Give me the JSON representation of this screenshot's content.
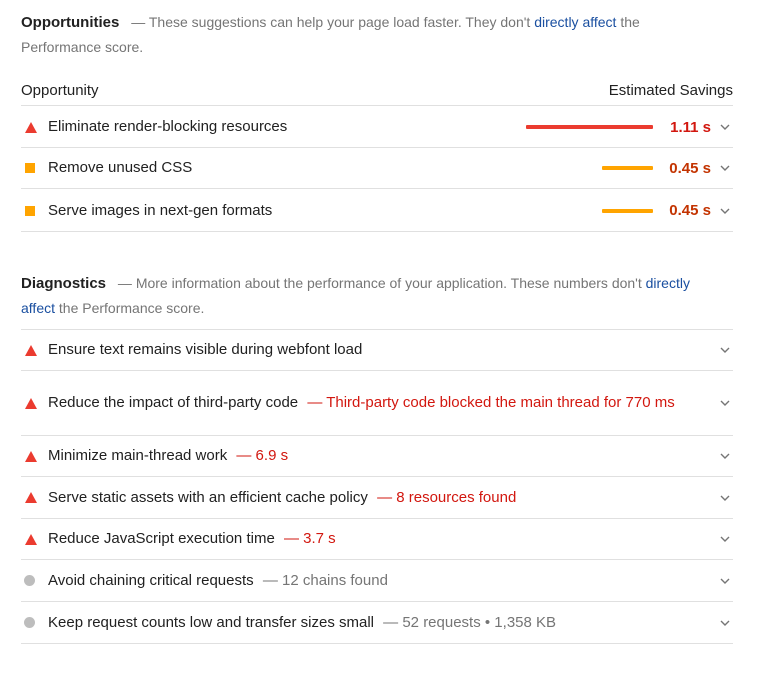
{
  "opportunities": {
    "title": "Opportunities",
    "sep": "—",
    "desc_before": "These suggestions can help your page load faster. They don't ",
    "desc_link": "directly affect",
    "desc_after": " the Performance score.",
    "col_left": "Opportunity",
    "col_right": "Estimated Savings",
    "items": [
      {
        "label": "Eliminate render-blocking resources",
        "value": "1.11 s",
        "seconds": 1.11,
        "status": "fail"
      },
      {
        "label": "Remove unused CSS",
        "value": "0.45 s",
        "seconds": 0.45,
        "status": "average"
      },
      {
        "label": "Serve images in next-gen formats",
        "value": "0.45 s",
        "seconds": 0.45,
        "status": "average"
      }
    ]
  },
  "diagnostics": {
    "title": "Diagnostics",
    "sep": "—",
    "desc_before": "More information about the performance of your application. These numbers don't ",
    "desc_link": "directly affect",
    "desc_after": " the Performance score.",
    "items": [
      {
        "label": "Ensure text remains visible during webfont load",
        "detail": "",
        "status": "fail"
      },
      {
        "label": "Reduce the impact of third-party code",
        "detail": "— Third-party code blocked the main thread for 770 ms",
        "status": "fail"
      },
      {
        "label": "Minimize main-thread work",
        "detail": "— 6.9 s",
        "status": "fail"
      },
      {
        "label": "Serve static assets with an efficient cache policy",
        "detail": "— 8 resources found",
        "status": "fail"
      },
      {
        "label": "Reduce JavaScript execution time",
        "detail": "— 3.7 s",
        "status": "fail"
      },
      {
        "label": "Avoid chaining critical requests",
        "detail": "— 12 chains found",
        "status": "info"
      },
      {
        "label": "Keep request counts low and transfer sizes small",
        "detail": "— 52 requests • 1,358 KB",
        "status": "info"
      }
    ]
  },
  "colors": {
    "fail": "#eb3b2f",
    "average": "#ffa400",
    "info": "#bdbdbd",
    "fail_text": "#d2170f",
    "average_text": "#c33300",
    "link": "#1a4fa0"
  },
  "icons": {
    "fail": "triangle-icon",
    "average": "square-icon",
    "info": "circle-icon",
    "expand": "chevron-down-icon"
  }
}
